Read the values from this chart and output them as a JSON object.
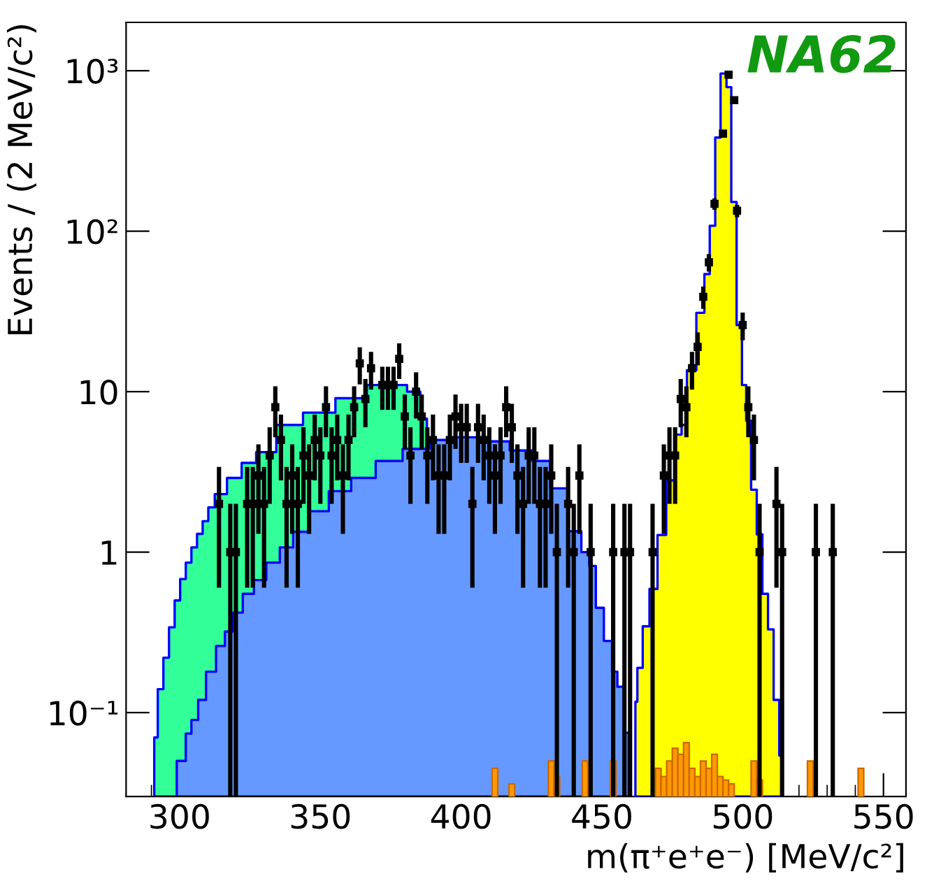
{
  "chart_data": {
    "type": "area",
    "xlabel": "m(π⁺e⁺e⁻) [MeV/c²]",
    "ylabel": "Events / (2 MeV/c²)",
    "log": true,
    "xlim": [
      281,
      558
    ],
    "xticks": [
      300,
      350,
      400,
      450,
      500,
      550
    ],
    "ylim": [
      0.03,
      2000
    ],
    "yticks": [
      {
        "value": 0.1,
        "label": "10⁻¹"
      },
      1,
      10,
      {
        "value": 100,
        "label": "10²"
      },
      {
        "value": 1000,
        "label": "10³"
      }
    ],
    "annotations": [
      "NA62"
    ],
    "series": [
      {
        "color": "#33ff99",
        "x": [
          291,
          293.5,
          295,
          297.5,
          299,
          301.4,
          303,
          305.4,
          307,
          309.4,
          311,
          314,
          319.7,
          324.4,
          330,
          338.7,
          349,
          361.7,
          371.3,
          377.6,
          384,
          387,
          388.7
        ],
        "values": [
          0.07,
          0.14,
          0.22,
          0.34,
          0.5,
          0.68,
          0.86,
          1.07,
          1.3,
          1.56,
          1.9,
          2.3,
          2.9,
          3.6,
          4.2,
          6.2,
          7.4,
          9.1,
          11,
          11,
          10,
          6.8,
          5.0
        ]
      },
      {
        "color": "#6699ff",
        "x": [
          299,
          301.4,
          303,
          305.4,
          307.8,
          311,
          314.9,
          317.3,
          320.5,
          324.4,
          328.4,
          333.2,
          338,
          342.7,
          349,
          357,
          364.9,
          374.4,
          384,
          393.5,
          403,
          412.5,
          422,
          428.4,
          434.8,
          441.1,
          444.3,
          446.7,
          449,
          452.4,
          454.8,
          456.2,
          459.5
        ],
        "values": [
          0.05,
          0.05,
          0.074,
          0.09,
          0.12,
          0.18,
          0.26,
          0.32,
          0.42,
          0.55,
          0.67,
          0.86,
          1.07,
          1.34,
          1.8,
          2.4,
          2.9,
          3.7,
          4.4,
          5.0,
          5.2,
          4.9,
          4.3,
          3.7,
          2.5,
          1.35,
          1.0,
          0.82,
          0.45,
          0.28,
          0.18,
          0.145,
          0.075
        ]
      },
      {
        "color": "#ffff00",
        "x": [
          461.9,
          463.3,
          465.7,
          468.1,
          471.4,
          474.3,
          477.6,
          479,
          481.4,
          485.7,
          487.1,
          489.5,
          491,
          493.3,
          495.2,
          496.7,
          499,
          500.5,
          502,
          504,
          506,
          508,
          510,
          512,
          514
        ],
        "values": [
          0.117,
          0.19,
          0.345,
          0.59,
          1.28,
          2.8,
          5.4,
          6.2,
          13.6,
          31,
          54,
          108,
          383,
          960,
          790,
          152,
          26,
          11,
          6.6,
          2.45,
          1.29,
          0.55,
          0.33,
          0.12,
          0.054
        ]
      },
      {
        "type": "bar",
        "color": "#ff9900",
        "x": [
          412,
          418,
          432,
          434,
          444,
          454,
          470,
          472,
          474,
          476,
          478,
          480,
          482,
          484,
          486,
          488,
          490,
          492,
          494,
          496,
          504,
          506,
          524,
          542
        ],
        "values": [
          0.045,
          0.036,
          0.05,
          0.04,
          0.05,
          0.05,
          0.045,
          0.04,
          0.05,
          0.06,
          0.055,
          0.065,
          0.045,
          0.04,
          0.05,
          0.045,
          0.055,
          0.04,
          0.038,
          0.036,
          0.05,
          0.038,
          0.05,
          0.045
        ]
      },
      {
        "type": "scatter",
        "color": "#000000",
        "x": [
          314,
          318,
          320,
          324,
          326,
          328,
          330,
          332,
          334,
          336,
          338,
          340,
          342,
          344,
          346,
          348,
          350,
          352,
          354,
          356,
          358,
          360,
          362,
          364,
          366,
          368,
          372,
          374,
          376,
          378,
          380,
          382,
          384,
          386,
          388,
          390,
          392,
          394,
          396,
          398,
          400,
          402,
          404,
          406,
          408,
          410,
          412,
          414,
          416,
          418,
          420,
          422,
          424,
          426,
          428,
          430,
          432,
          434,
          438,
          440,
          442,
          446,
          454,
          458,
          460,
          468,
          472,
          474,
          476,
          478,
          480,
          482,
          484,
          486,
          488,
          490,
          493,
          495,
          497,
          498,
          500,
          502,
          504,
          506,
          512,
          514,
          526,
          532
        ],
        "values": [
          2,
          1,
          1,
          2,
          2,
          3,
          2,
          4,
          8,
          5,
          2,
          3,
          2,
          4,
          3,
          5,
          4,
          8,
          4,
          5,
          3,
          5,
          8,
          15,
          9,
          14,
          11,
          11,
          11,
          16,
          7,
          4,
          10,
          7,
          4,
          5,
          3,
          3,
          5,
          7,
          6,
          6,
          2,
          6,
          5,
          4,
          3,
          4,
          8,
          6,
          3,
          2,
          4,
          4,
          2,
          2,
          3,
          1,
          2,
          1,
          3,
          1,
          1,
          1,
          1,
          1,
          3,
          4,
          4,
          9,
          8,
          14,
          19,
          39,
          64,
          148,
          405,
          944,
          655,
          134,
          26,
          8,
          5,
          1,
          2,
          1,
          1,
          1
        ],
        "errors": [
          1.4,
          [
            0.03,
            2
          ],
          [
            0.03,
            2
          ],
          1.4,
          1.4,
          1.7,
          1.4,
          2,
          2.8,
          2.2,
          1.4,
          1.7,
          1.4,
          2,
          1.7,
          2.2,
          2,
          2.8,
          2,
          2.2,
          1.7,
          2.2,
          2.8,
          3.9,
          3,
          3.7,
          3.3,
          3.3,
          3.3,
          4,
          2.6,
          2,
          3.2,
          2.6,
          2,
          2.2,
          1.7,
          1.7,
          2.2,
          2.6,
          2.4,
          2.4,
          1.4,
          2.4,
          2.2,
          2,
          1.7,
          2,
          2.8,
          2.4,
          1.7,
          1.4,
          2,
          2,
          1.4,
          1.4,
          1.7,
          [
            0.03,
            2
          ],
          1.4,
          [
            0.03,
            2
          ],
          1.7,
          [
            0.03,
            2
          ],
          [
            0.03,
            2
          ],
          [
            0.03,
            2
          ],
          [
            0.03,
            2
          ],
          [
            0.03,
            2
          ],
          1.7,
          2,
          2,
          3,
          2.8,
          3.7,
          4.4,
          6.2,
          8,
          12,
          20,
          31,
          26,
          12,
          5.1,
          2.8,
          2.2,
          [
            0.03,
            2
          ],
          1.4,
          [
            0.03,
            2
          ],
          [
            0.03,
            2
          ],
          [
            0.03,
            2
          ]
        ]
      }
    ]
  }
}
